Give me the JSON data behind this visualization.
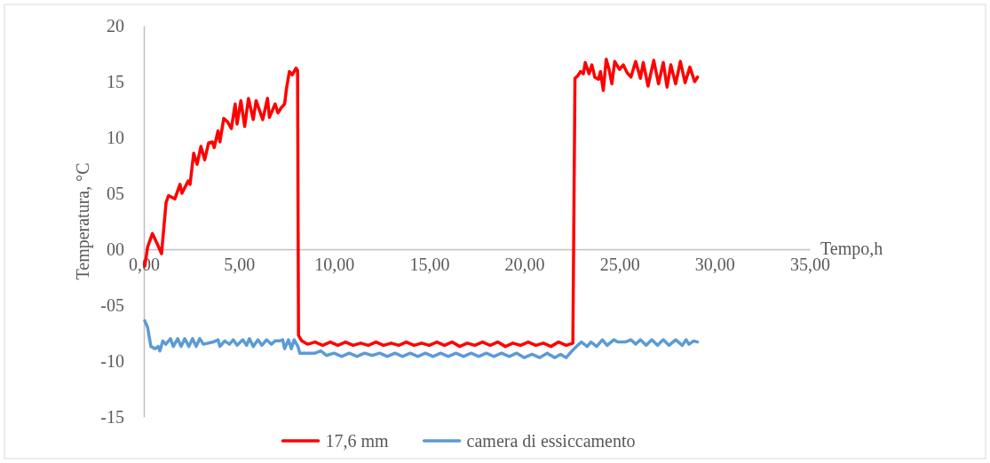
{
  "chart_data": {
    "type": "line",
    "xlabel": "Tempo,h",
    "ylabel": "Temperatura, °C",
    "xlim": [
      0,
      35
    ],
    "ylim": [
      -15,
      20
    ],
    "xticks": [
      {
        "value": 0,
        "label": "0,00"
      },
      {
        "value": 5,
        "label": "5,00"
      },
      {
        "value": 10,
        "label": "10,00"
      },
      {
        "value": 15,
        "label": "15,00"
      },
      {
        "value": 20,
        "label": "20,00"
      },
      {
        "value": 25,
        "label": "25,00"
      },
      {
        "value": 30,
        "label": "30,00"
      },
      {
        "value": 35,
        "label": "35,00"
      }
    ],
    "yticks": [
      20,
      15,
      10,
      {
        "value": 5,
        "label": "05"
      },
      {
        "value": 0,
        "label": "00"
      },
      {
        "value": -5,
        "label": "-05"
      },
      -10,
      -15
    ],
    "legend": "bottom",
    "series": [
      {
        "name": "17,6 mm",
        "color": "#ff0000",
        "x": [
          0.05,
          0.2,
          0.45,
          0.7,
          0.93,
          1.17,
          1.3,
          1.63,
          1.9,
          2.0,
          2.33,
          2.43,
          2.62,
          2.8,
          3.0,
          3.2,
          3.4,
          3.6,
          3.7,
          3.9,
          4.0,
          4.2,
          4.4,
          4.6,
          4.8,
          4.9,
          5.1,
          5.3,
          5.5,
          5.75,
          5.9,
          6.25,
          6.5,
          6.6,
          6.9,
          7.05,
          7.2,
          7.4,
          7.5,
          7.65,
          7.8,
          8.0,
          8.08,
          8.13,
          8.3,
          8.6,
          9.0,
          9.4,
          9.8,
          10.2,
          10.6,
          11.0,
          11.4,
          11.8,
          12.2,
          12.6,
          13.0,
          13.4,
          13.8,
          14.2,
          14.6,
          15.0,
          15.4,
          15.8,
          16.2,
          16.6,
          17.0,
          17.4,
          17.8,
          18.2,
          18.6,
          19.0,
          19.4,
          19.8,
          20.2,
          20.6,
          21.0,
          21.4,
          21.8,
          22.2,
          22.55,
          22.66,
          22.8,
          22.95,
          23.1,
          23.2,
          23.4,
          23.55,
          23.7,
          23.9,
          24.0,
          24.15,
          24.3,
          24.45,
          24.6,
          24.75,
          25.0,
          25.2,
          25.4,
          25.6,
          25.85,
          26.1,
          26.25,
          26.5,
          26.8,
          27.05,
          27.3,
          27.5,
          27.7,
          27.95,
          28.2,
          28.45,
          28.7,
          28.95,
          29.1
        ],
        "values": [
          -1.5,
          0.2,
          1.4,
          0.5,
          -0.4,
          4.2,
          4.8,
          4.5,
          5.8,
          5.0,
          6.1,
          5.8,
          8.6,
          7.6,
          9.2,
          8.0,
          9.5,
          9.6,
          9.1,
          10.6,
          9.6,
          11.7,
          11.4,
          10.8,
          13.0,
          11.2,
          13.3,
          11.0,
          13.5,
          11.6,
          13.3,
          11.6,
          13.5,
          11.8,
          13.0,
          12.2,
          12.6,
          13.0,
          14.4,
          15.9,
          15.6,
          16.2,
          16.0,
          -7.7,
          -8.2,
          -8.5,
          -8.3,
          -8.6,
          -8.3,
          -8.6,
          -8.3,
          -8.6,
          -8.4,
          -8.6,
          -8.3,
          -8.6,
          -8.4,
          -8.6,
          -8.3,
          -8.6,
          -8.4,
          -8.6,
          -8.3,
          -8.6,
          -8.3,
          -8.7,
          -8.4,
          -8.6,
          -8.3,
          -8.6,
          -8.3,
          -8.7,
          -8.4,
          -8.6,
          -8.3,
          -8.6,
          -8.4,
          -8.7,
          -8.3,
          -8.6,
          -8.4,
          15.3,
          15.5,
          15.9,
          15.7,
          16.7,
          15.7,
          16.5,
          15.4,
          15.2,
          15.9,
          14.2,
          17.0,
          16.1,
          14.8,
          16.8,
          16.1,
          16.5,
          15.8,
          15.4,
          16.8,
          15.3,
          16.7,
          14.6,
          16.9,
          14.8,
          16.7,
          14.5,
          16.5,
          14.8,
          16.8,
          14.9,
          16.3,
          15.0,
          15.4
        ]
      },
      {
        "name": "camera di essiccamento",
        "color": "#5b9bd5",
        "x": [
          0.05,
          0.2,
          0.37,
          0.6,
          0.75,
          0.84,
          1.0,
          1.15,
          1.4,
          1.55,
          1.78,
          1.96,
          2.15,
          2.37,
          2.56,
          2.75,
          2.94,
          3.13,
          3.65,
          3.9,
          4.0,
          4.25,
          4.5,
          4.7,
          4.9,
          5.2,
          5.4,
          5.55,
          5.75,
          6.0,
          6.2,
          6.45,
          6.7,
          6.9,
          7.15,
          7.3,
          7.4,
          7.6,
          7.75,
          7.9,
          8.1,
          8.2,
          8.6,
          9.0,
          9.3,
          9.6,
          10.0,
          10.4,
          10.8,
          11.2,
          11.6,
          12.0,
          12.4,
          12.8,
          13.2,
          13.6,
          14.0,
          14.4,
          14.8,
          15.2,
          15.6,
          16.0,
          16.4,
          16.8,
          17.2,
          17.6,
          18.0,
          18.4,
          18.8,
          19.2,
          19.6,
          20.0,
          20.4,
          20.8,
          21.2,
          21.6,
          21.9,
          22.2,
          22.5,
          22.8,
          23.0,
          23.3,
          23.5,
          23.8,
          24.1,
          24.35,
          24.7,
          24.9,
          25.3,
          25.6,
          25.85,
          26.1,
          26.4,
          26.7,
          27.0,
          27.3,
          27.6,
          27.95,
          28.3,
          28.5,
          28.65,
          28.9,
          29.1
        ],
        "values": [
          -6.4,
          -7.0,
          -8.7,
          -8.9,
          -8.7,
          -9.1,
          -8.2,
          -8.5,
          -8.0,
          -8.7,
          -8.0,
          -8.7,
          -8.0,
          -8.7,
          -8.0,
          -8.7,
          -8.0,
          -8.5,
          -8.3,
          -8.1,
          -8.7,
          -8.2,
          -8.5,
          -8.1,
          -8.6,
          -8.1,
          -8.6,
          -8.0,
          -8.7,
          -8.1,
          -8.6,
          -8.1,
          -8.5,
          -8.2,
          -8.2,
          -8.1,
          -8.9,
          -8.1,
          -8.9,
          -8.1,
          -8.7,
          -9.3,
          -9.3,
          -9.3,
          -9.1,
          -9.5,
          -9.3,
          -9.6,
          -9.3,
          -9.6,
          -9.3,
          -9.5,
          -9.3,
          -9.6,
          -9.3,
          -9.6,
          -9.3,
          -9.6,
          -9.3,
          -9.6,
          -9.3,
          -9.6,
          -9.3,
          -9.6,
          -9.3,
          -9.6,
          -9.3,
          -9.6,
          -9.3,
          -9.6,
          -9.3,
          -9.7,
          -9.4,
          -9.7,
          -9.3,
          -9.7,
          -9.4,
          -9.7,
          -9.1,
          -8.6,
          -8.3,
          -8.7,
          -8.3,
          -8.7,
          -8.1,
          -8.6,
          -8.1,
          -8.3,
          -8.3,
          -8.1,
          -8.5,
          -8.1,
          -8.6,
          -8.1,
          -8.6,
          -8.1,
          -8.6,
          -8.1,
          -8.6,
          -8.1,
          -8.5,
          -8.2,
          -8.3
        ]
      }
    ]
  }
}
